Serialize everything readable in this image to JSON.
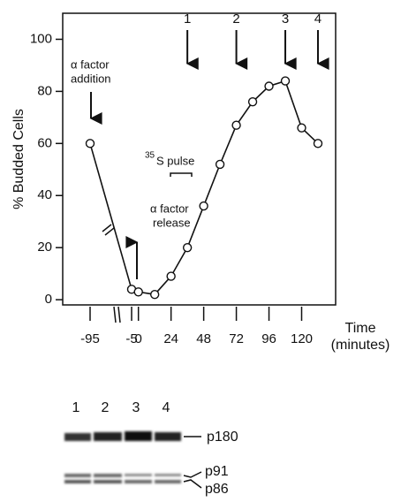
{
  "chart_data": {
    "type": "line",
    "y_label": "% Budded Cells",
    "x_label": "Time",
    "x_unit": "(minutes)",
    "x": [
      -95,
      -5,
      0,
      12,
      24,
      36,
      48,
      60,
      72,
      84,
      96,
      108,
      120,
      132
    ],
    "values": [
      60,
      4,
      3,
      2,
      9,
      20,
      36,
      52,
      67,
      76,
      82,
      84,
      66,
      60
    ],
    "color": "#111111",
    "xlim": [
      -115,
      145
    ],
    "ylim": [
      -2,
      110
    ],
    "xticks": [
      -95,
      -5,
      0,
      24,
      48,
      72,
      96,
      120
    ],
    "yticks": [
      0,
      20,
      40,
      60,
      80,
      100
    ],
    "annotations": [
      {
        "lines": [
          "α factor",
          "addition"
        ]
      },
      {
        "lines": [
          "α factor",
          "release"
        ]
      },
      {
        "sup": "35",
        "text": "S pulse"
      }
    ],
    "sample_arrows": [
      {
        "label": "1",
        "x": 36
      },
      {
        "label": "2",
        "x": 72
      },
      {
        "label": "3",
        "x": 108
      },
      {
        "label": "4",
        "x": 132
      }
    ]
  },
  "blot": {
    "lanes": [
      "1",
      "2",
      "3",
      "4"
    ],
    "bands": [
      "p180",
      "p91",
      "p86"
    ]
  }
}
